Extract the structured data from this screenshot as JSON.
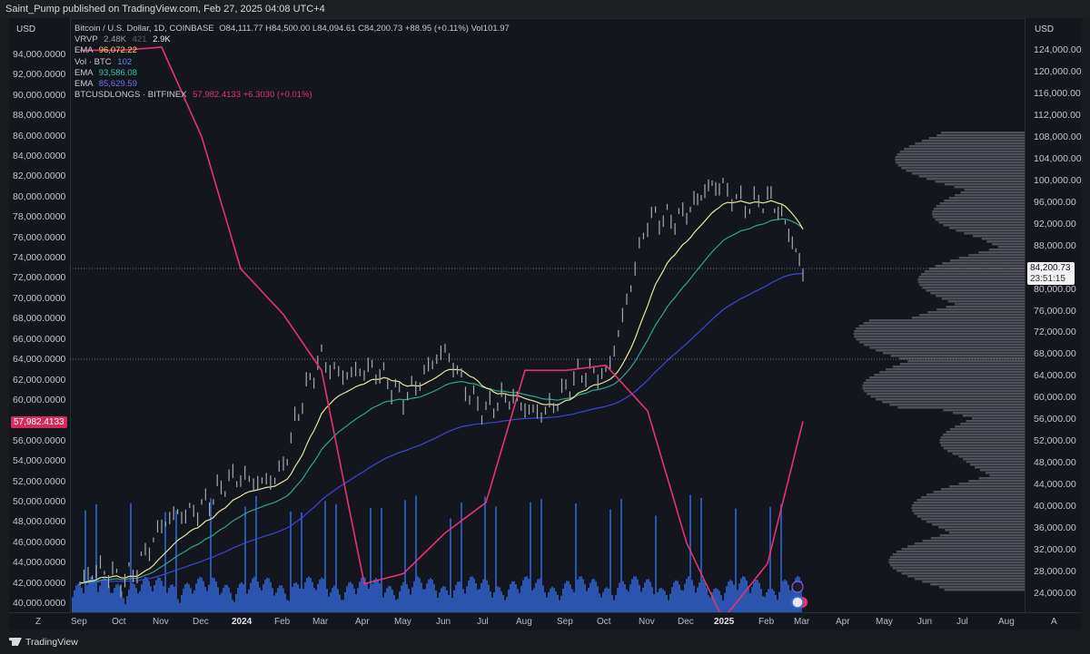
{
  "header": {
    "published": "Saint_Pump published on TradingView.com, Feb 27, 2025 04:08 UTC+4"
  },
  "axes": {
    "left_currency": "USD",
    "right_currency": "USD",
    "left_ticks": [
      "94,000.0000",
      "92,000.0000",
      "90,000.0000",
      "88,000.0000",
      "86,000.0000",
      "84,000.0000",
      "82,000.0000",
      "80,000.0000",
      "78,000.0000",
      "76,000.0000",
      "74,000.0000",
      "72,000.0000",
      "70,000.0000",
      "68,000.0000",
      "66,000.0000",
      "64,000.0000",
      "62,000.0000",
      "60,000.0000",
      "56,000.0000",
      "54,000.0000",
      "52,000.0000",
      "50,000.0000",
      "48,000.0000",
      "46,000.0000",
      "44,000.0000",
      "42,000.0000",
      "40,000.0000"
    ],
    "right_ticks": [
      "124,000.00",
      "120,000.00",
      "116,000.00",
      "112,000.00",
      "108,000.00",
      "104,000.00",
      "100,000.00",
      "96,000.00",
      "92,000.00",
      "88,000.00",
      "80,000.00",
      "76,000.00",
      "72,000.00",
      "68,000.00",
      "64,000.00",
      "60,000.00",
      "56,000.00",
      "52,000.00",
      "48,000.00",
      "44,000.00",
      "40,000.00",
      "36,000.00",
      "32,000.00",
      "28,000.00",
      "24,000.00"
    ],
    "x_ticks": [
      "Sep",
      "Oct",
      "Nov",
      "Dec",
      "2024",
      "Feb",
      "Mar",
      "Apr",
      "May",
      "Jun",
      "Jul",
      "Aug",
      "Sep",
      "Oct",
      "Nov",
      "Dec",
      "2025",
      "Feb",
      "Mar",
      "Apr",
      "May",
      "Jun",
      "Jul",
      "Aug"
    ],
    "left_tag": "57,982.4133",
    "right_tag_price": "84,200.73",
    "right_tag_time": "23:51:15",
    "z_label": "Z",
    "a_label": "A"
  },
  "legend": {
    "symbol": "Bitcoin / U.S. Dollar, 1D, COINBASE",
    "ohlc": "O84,111.77  H84,500.00  L84,094.61  C84,200.73  +88.95 (+0.11%)  Vol101.97",
    "vrvp_label": "VRVP",
    "vrvp_a": "2.48K",
    "vrvp_b": "421",
    "vrvp_c": "2.9K",
    "ema1_label": "EMA",
    "ema1_value": "96,072.22",
    "vol_label": "Vol · BTC",
    "vol_value": "102",
    "ema2_label": "EMA",
    "ema2_value": "93,586.08",
    "ema3_label": "EMA",
    "ema3_value": "85,629.59",
    "longs_label": "BTCUSDLONGS · BITFINEX",
    "longs_value": "57,982.4133  +6.3030 (+0.01%)"
  },
  "footer": {
    "brand": "TradingView"
  },
  "colors": {
    "background": "#14161d",
    "price_bars": "#a7a9b1",
    "longs_line": "#e6336f",
    "ema_fast": "#e8e4a0",
    "ema_mid": "#2fa58e",
    "ema_slow": "#3b45d6",
    "volume": "#2f5fc8"
  },
  "chart_data": {
    "type": "line",
    "series": [
      {
        "name": "BTCUSDLONGS · BITFINEX",
        "x": [
          "Sep",
          "Oct",
          "Nov",
          "Dec",
          "2024",
          "Feb",
          "Mar",
          "Apr",
          "May",
          "Jun",
          "Jul",
          "Aug",
          "Sep",
          "Oct",
          "Nov",
          "Dec",
          "2025",
          "Feb",
          "Mar"
        ],
        "values": [
          94500,
          94500,
          94800,
          86000,
          73000,
          68500,
          63000,
          42000,
          43000,
          47000,
          50000,
          63000,
          63000,
          63500,
          59000,
          46000,
          38500,
          44000,
          57982
        ]
      },
      {
        "name": "Bitcoin / U.S. Dollar",
        "x": [
          "Sep",
          "Oct",
          "Nov",
          "Dec",
          "2024",
          "Feb",
          "Mar",
          "Apr",
          "May",
          "Jun",
          "Jul",
          "Aug",
          "Sep",
          "Oct",
          "Nov",
          "Dec",
          "2025",
          "Feb",
          "Mar"
        ],
        "values": [
          26000,
          27500,
          35000,
          42000,
          44000,
          48000,
          68000,
          64000,
          62000,
          67000,
          59000,
          58000,
          61000,
          66000,
          91000,
          96000,
          98000,
          97000,
          84200
        ]
      }
    ]
  }
}
